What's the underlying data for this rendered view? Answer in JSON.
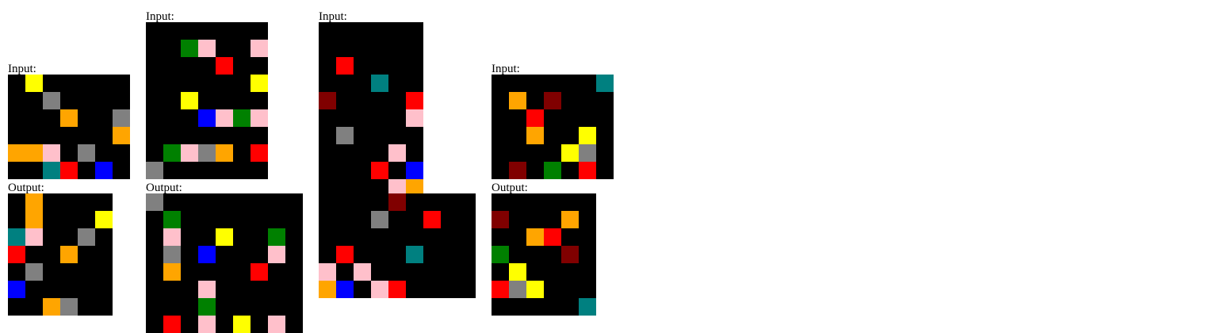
{
  "labels": {
    "input": "Input:",
    "output": "Output:"
  },
  "palette": {
    "0": "#000000",
    "1": "#0000ff",
    "2": "#ff0000",
    "3": "#008000",
    "4": "#ffff00",
    "5": "#808080",
    "6": "#ffc0cb",
    "7": "#ffa500",
    "8": "#008080",
    "9": "#800000"
  },
  "examples": [
    {
      "input": [
        [
          0,
          4,
          0,
          0,
          0,
          0,
          0
        ],
        [
          0,
          0,
          5,
          0,
          0,
          0,
          0
        ],
        [
          0,
          0,
          0,
          7,
          0,
          0,
          5
        ],
        [
          0,
          0,
          0,
          0,
          0,
          0,
          7
        ],
        [
          7,
          7,
          6,
          0,
          5,
          0,
          0
        ],
        [
          0,
          0,
          8,
          2,
          0,
          1,
          0
        ]
      ],
      "output": [
        [
          0,
          7,
          0,
          0,
          0,
          0
        ],
        [
          0,
          7,
          0,
          0,
          0,
          4
        ],
        [
          8,
          6,
          0,
          0,
          5,
          0
        ],
        [
          2,
          0,
          0,
          7,
          0,
          0
        ],
        [
          0,
          5,
          0,
          0,
          0,
          0
        ],
        [
          1,
          0,
          0,
          0,
          0,
          0
        ],
        [
          0,
          0,
          7,
          5,
          0,
          0
        ]
      ]
    },
    {
      "input": [
        [
          0,
          0,
          0,
          0,
          0,
          0,
          0
        ],
        [
          0,
          0,
          3,
          6,
          0,
          0,
          6
        ],
        [
          0,
          0,
          0,
          0,
          2,
          0,
          0
        ],
        [
          0,
          0,
          0,
          0,
          0,
          0,
          4
        ],
        [
          0,
          0,
          4,
          0,
          0,
          0,
          0
        ],
        [
          0,
          0,
          0,
          1,
          6,
          3,
          6
        ],
        [
          0,
          0,
          0,
          0,
          0,
          0,
          0
        ],
        [
          0,
          3,
          6,
          5,
          7,
          0,
          2
        ],
        [
          5,
          0,
          0,
          0,
          0,
          0,
          0
        ]
      ],
      "output": [
        [
          5,
          0,
          0,
          0,
          0,
          0,
          0,
          0,
          0
        ],
        [
          0,
          3,
          0,
          0,
          0,
          0,
          0,
          0,
          0
        ],
        [
          0,
          6,
          0,
          0,
          4,
          0,
          0,
          3,
          0
        ],
        [
          0,
          5,
          0,
          1,
          0,
          0,
          0,
          6,
          0
        ],
        [
          0,
          7,
          0,
          0,
          0,
          0,
          2,
          0,
          0
        ],
        [
          0,
          0,
          0,
          6,
          0,
          0,
          0,
          0,
          0
        ],
        [
          0,
          0,
          0,
          3,
          0,
          0,
          0,
          0,
          0
        ],
        [
          0,
          2,
          0,
          6,
          0,
          4,
          0,
          6,
          0
        ]
      ]
    },
    {
      "input": [
        [
          0,
          0,
          0,
          0,
          0,
          0
        ],
        [
          0,
          0,
          0,
          0,
          0,
          0
        ],
        [
          0,
          2,
          0,
          0,
          0,
          0
        ],
        [
          0,
          0,
          0,
          8,
          0,
          0
        ],
        [
          9,
          0,
          0,
          0,
          0,
          2
        ],
        [
          0,
          0,
          0,
          0,
          0,
          6
        ],
        [
          0,
          5,
          0,
          0,
          0,
          0
        ],
        [
          0,
          0,
          0,
          0,
          6,
          0
        ],
        [
          0,
          0,
          0,
          2,
          0,
          1
        ],
        [
          0,
          0,
          0,
          0,
          6,
          7
        ]
      ],
      "output": [
        [
          0,
          0,
          0,
          0,
          9,
          0,
          0,
          0,
          0
        ],
        [
          0,
          0,
          0,
          5,
          0,
          0,
          2,
          0,
          0
        ],
        [
          0,
          0,
          0,
          0,
          0,
          0,
          0,
          0,
          0
        ],
        [
          0,
          2,
          0,
          0,
          0,
          8,
          0,
          0,
          0
        ],
        [
          6,
          0,
          6,
          0,
          0,
          0,
          0,
          0,
          0
        ],
        [
          7,
          1,
          0,
          6,
          2,
          0,
          0,
          0,
          0
        ]
      ]
    },
    {
      "input": [
        [
          0,
          0,
          0,
          0,
          0,
          0,
          8
        ],
        [
          0,
          7,
          0,
          9,
          0,
          0,
          0
        ],
        [
          0,
          0,
          2,
          0,
          0,
          0,
          0
        ],
        [
          0,
          0,
          7,
          0,
          0,
          4,
          0
        ],
        [
          0,
          0,
          0,
          0,
          4,
          5,
          0
        ],
        [
          0,
          9,
          0,
          3,
          0,
          2,
          0
        ]
      ],
      "output": [
        [
          0,
          0,
          0,
          0,
          0,
          0
        ],
        [
          9,
          0,
          0,
          0,
          7,
          0
        ],
        [
          0,
          0,
          7,
          2,
          0,
          0
        ],
        [
          3,
          0,
          0,
          0,
          9,
          0
        ],
        [
          0,
          4,
          0,
          0,
          0,
          0
        ],
        [
          2,
          5,
          4,
          0,
          0,
          0
        ],
        [
          0,
          0,
          0,
          0,
          0,
          8
        ]
      ]
    }
  ]
}
